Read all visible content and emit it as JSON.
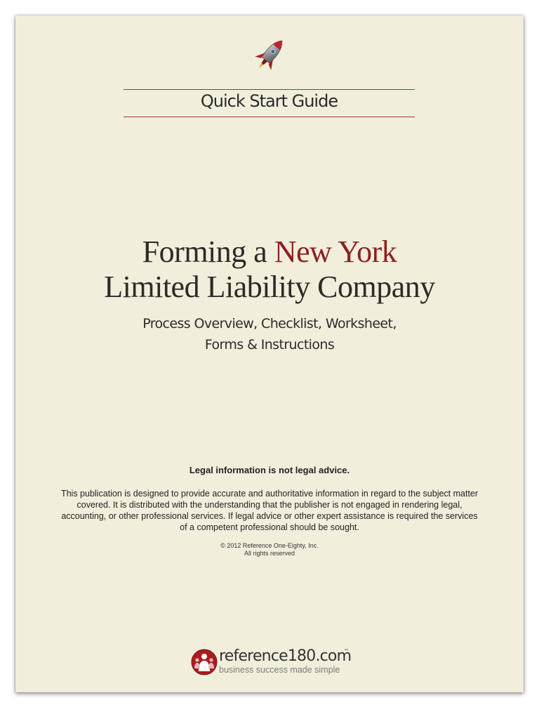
{
  "header": {
    "icon": "rocket-icon",
    "guide_label": "Quick Start Guide"
  },
  "title": {
    "line1_prefix": "Forming a ",
    "line1_accent": "New York",
    "line2": "Limited Liability Company"
  },
  "subtitle": {
    "line1": "Process Overview, Checklist, Worksheet,",
    "line2": "Forms & Instructions"
  },
  "legal": {
    "heading": "Legal information is not legal advice.",
    "body": "This publication is designed to provide accurate and authoritative information in regard to the subject matter covered. It is distributed with the understanding that the publisher is not engaged in rendering legal, accounting, or other professional services. If legal advice or other expert assistance is required the services of a competent professional should be sought."
  },
  "copyright": {
    "line1": "© 2012 Reference One-Eighty, Inc.",
    "line2": "All rights reserved"
  },
  "logo": {
    "name": "reference180.com",
    "tm": "™",
    "tagline": "business success made simple",
    "icon": "reference180-logo-icon"
  },
  "colors": {
    "page_background": "#f1eedc",
    "accent": "#8e1f1f",
    "rule": "#a8303a"
  }
}
